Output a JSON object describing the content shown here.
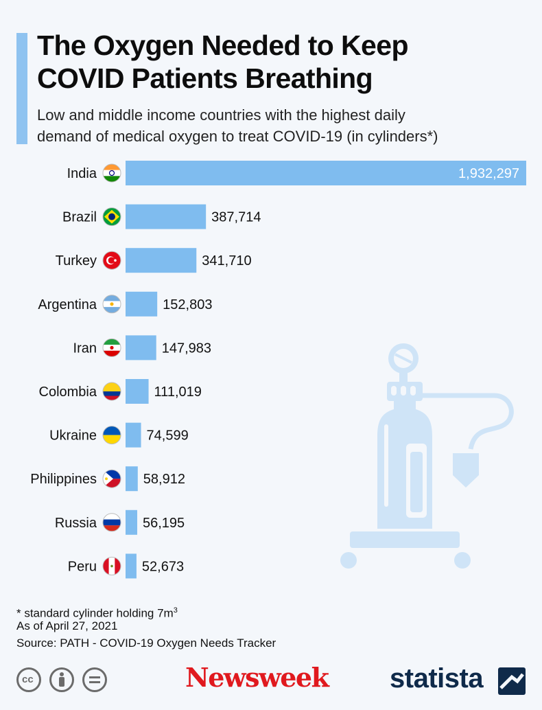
{
  "title_lines": [
    "The Oxygen Needed to Keep",
    "COVID Patients Breathing"
  ],
  "subtitle_lines": [
    "Low and middle income countries with the highest daily",
    "demand of medical oxygen to treat COVID-19 (in cylinders*)"
  ],
  "colors": {
    "bar": "#7fbcef",
    "accent": "#8fc3f0",
    "illustration": "#cfe4f7"
  },
  "chart_data": {
    "type": "bar",
    "orientation": "horizontal",
    "title": "The Oxygen Needed to Keep COVID Patients Breathing",
    "categories": [
      "India",
      "Brazil",
      "Turkey",
      "Argentina",
      "Iran",
      "Colombia",
      "Ukraine",
      "Philippines",
      "Russia",
      "Peru"
    ],
    "values": [
      1932297,
      387714,
      341710,
      152803,
      147983,
      111019,
      74599,
      58912,
      56195,
      52673
    ],
    "value_labels": [
      "1,932,297",
      "387,714",
      "341,710",
      "152,803",
      "147,983",
      "111,019",
      "74,599",
      "58,912",
      "56,195",
      "52,673"
    ],
    "flag_icons": [
      "india-flag-icon",
      "brazil-flag-icon",
      "turkey-flag-icon",
      "argentina-flag-icon",
      "iran-flag-icon",
      "colombia-flag-icon",
      "ukraine-flag-icon",
      "philippines-flag-icon",
      "russia-flag-icon",
      "peru-flag-icon"
    ],
    "xlabel": "",
    "ylabel": "",
    "grid": false,
    "legend": "none"
  },
  "notes": {
    "footnote_prefix": "* standard cylinder holding 7m",
    "footnote_sup": "3",
    "as_of": "As of April 27, 2021",
    "source": "Source: PATH - COVID-19 Oxygen Needs Tracker"
  },
  "footer": {
    "newsweek": "Newsweek",
    "statista": "statista",
    "license_icons": [
      "cc-icon",
      "attribution-icon",
      "no-derivatives-icon"
    ],
    "cc_text": "cc"
  }
}
